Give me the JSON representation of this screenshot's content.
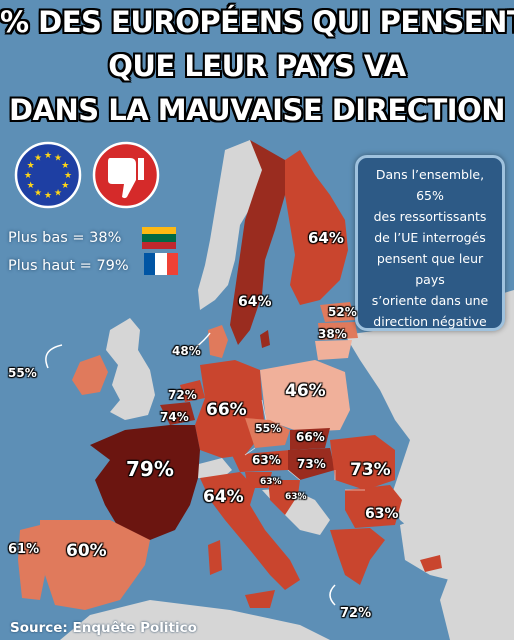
{
  "title": {
    "line1": "% DES EUROPÉENS QUI PENSENT",
    "line2": "QUE LEUR PAYS VA",
    "line3": "DANS LA MAUVAISE DIRECTION"
  },
  "info_box": {
    "lines": [
      "Dans l’ensemble, 65%",
      "des ressortissants",
      "de l’UE interrogés",
      "pensent que leur",
      "pays",
      "s’oriente dans une",
      "direction négative"
    ]
  },
  "legend": {
    "low": "Plus bas = 38%",
    "high": "Plus haut = 79%"
  },
  "icons": {
    "eu": "eu-flag-icon",
    "thumb": "thumbs-down-icon",
    "low_flag": "lithuania-flag-icon",
    "high_flag": "france-flag-icon"
  },
  "colors": {
    "sea": "#5d8fb6",
    "non_eu": "#d6d6d6",
    "darkest": "#6b1510",
    "dark": "#9a2c1f",
    "mid": "#c9452e",
    "light": "#e07a5c",
    "lightest": "#f0b09a"
  },
  "countries": [
    {
      "name": "Finlande",
      "value": "64%"
    },
    {
      "name": "Suède",
      "value": "64%"
    },
    {
      "name": "Estonie",
      "value": "52%"
    },
    {
      "name": "Lituanie",
      "value": "38%"
    },
    {
      "name": "Danemark",
      "value": "48%"
    },
    {
      "name": "Irlande",
      "value": "55%"
    },
    {
      "name": "Pays-Bas",
      "value": "72%"
    },
    {
      "name": "Belgique",
      "value": "74%"
    },
    {
      "name": "Allemagne",
      "value": "66%"
    },
    {
      "name": "Pologne",
      "value": "46%"
    },
    {
      "name": "Tchéquie",
      "value": "55%"
    },
    {
      "name": "Slovaquie",
      "value": "66%"
    },
    {
      "name": "Autriche",
      "value": "63%"
    },
    {
      "name": "Hongrie",
      "value": "73%"
    },
    {
      "name": "Slovénie",
      "value": "63%"
    },
    {
      "name": "Croatie",
      "value": "63%"
    },
    {
      "name": "Roumanie",
      "value": "73%"
    },
    {
      "name": "Bulgarie",
      "value": "63%"
    },
    {
      "name": "France",
      "value": "79%"
    },
    {
      "name": "Italie",
      "value": "64%"
    },
    {
      "name": "Espagne",
      "value": "60%"
    },
    {
      "name": "Portugal",
      "value": "61%"
    },
    {
      "name": "Chypre",
      "value": "72%"
    }
  ],
  "source": "Source: Enquête Politico"
}
